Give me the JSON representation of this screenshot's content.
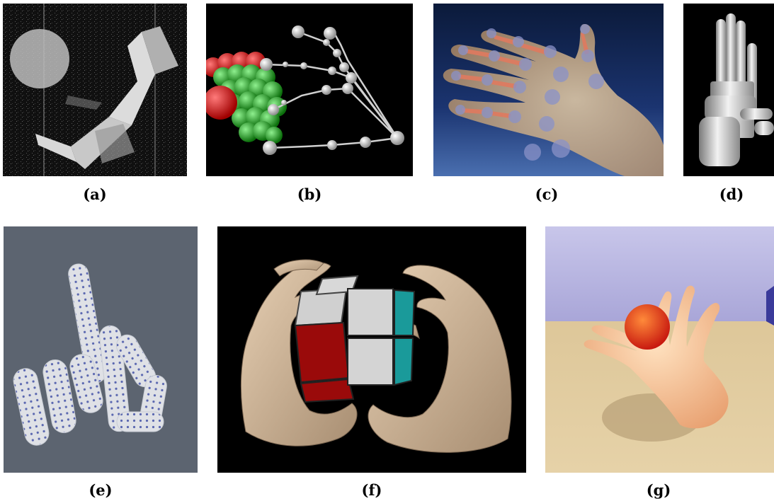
{
  "figure": {
    "panels": [
      {
        "id": "a",
        "caption": "(a)"
      },
      {
        "id": "b",
        "caption": "(b)"
      },
      {
        "id": "c",
        "caption": "(c)"
      },
      {
        "id": "d",
        "caption": "(d)"
      },
      {
        "id": "e",
        "caption": "(e)"
      },
      {
        "id": "f",
        "caption": "(f)"
      },
      {
        "id": "g",
        "caption": "(g)"
      }
    ]
  }
}
